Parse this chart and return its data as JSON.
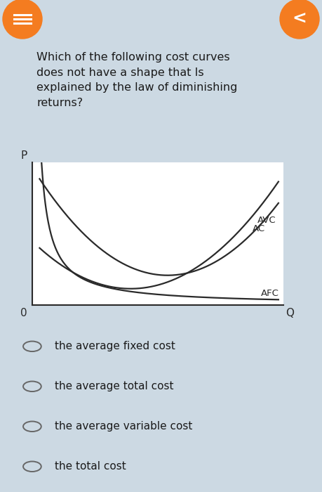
{
  "bg_color": "#ccd9e3",
  "card_bg": "#e8eef3",
  "chart_bg": "#ffffff",
  "orange_color": "#f47c20",
  "question_text": "Which of the following cost curves\ndoes not have a shape that Is\nexplained by the law of diminishing\nreturns?",
  "question_fontsize": 11.5,
  "options": [
    "the average fixed cost",
    "the average total cost",
    "the average variable cost",
    "the total cost"
  ],
  "option_fontsize": 11,
  "curve_color": "#2a2a2a",
  "axis_color": "#2a2a2a",
  "label_fontsize": 9.5,
  "axis_label_fontsize": 11,
  "text_color": "#1a1a1a"
}
